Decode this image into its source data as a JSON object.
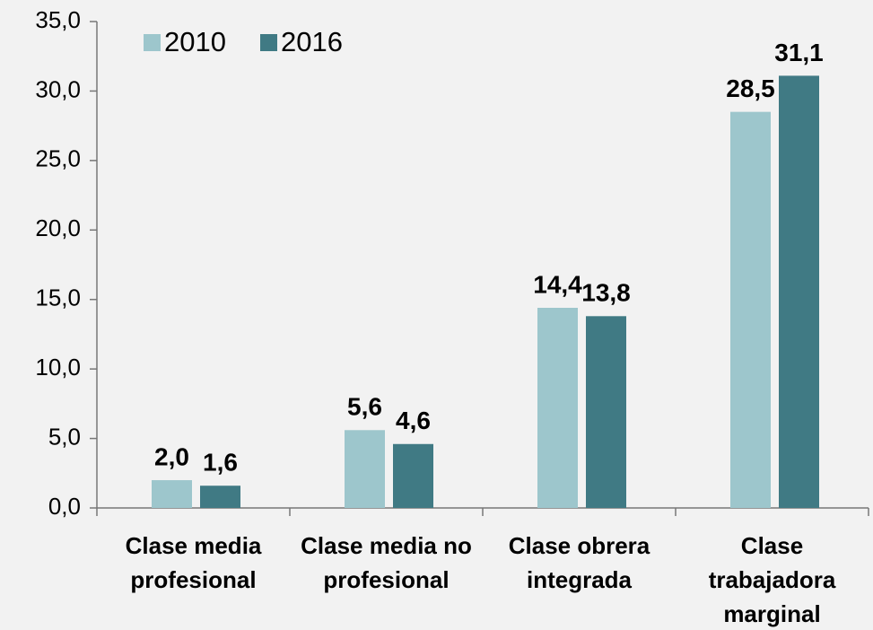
{
  "chart_data": {
    "type": "bar",
    "categories": [
      "Clase media profesional",
      "Clase media no profesional",
      "Clase obrera integrada",
      "Clase trabajadora marginal"
    ],
    "series": [
      {
        "name": "2010",
        "color": "#9dc6cc",
        "values": [
          2.0,
          5.6,
          14.4,
          28.5
        ],
        "value_labels": [
          "2,0",
          "5,6",
          "14,4",
          "28,5"
        ]
      },
      {
        "name": "2016",
        "color": "#407a84",
        "values": [
          1.6,
          4.6,
          13.8,
          31.1
        ],
        "value_labels": [
          "1,6",
          "4,6",
          "13,8",
          "31,1"
        ]
      }
    ],
    "ylim": [
      0,
      35
    ],
    "yticks": [
      {
        "value": 0,
        "label": "0,0"
      },
      {
        "value": 5,
        "label": "5,0"
      },
      {
        "value": 10,
        "label": "10,0"
      },
      {
        "value": 15,
        "label": "15,0"
      },
      {
        "value": 20,
        "label": "20,0"
      },
      {
        "value": 25,
        "label": "25,0"
      },
      {
        "value": 30,
        "label": "30,0"
      },
      {
        "value": 35,
        "label": "35,0"
      }
    ],
    "legend": "top-left"
  }
}
